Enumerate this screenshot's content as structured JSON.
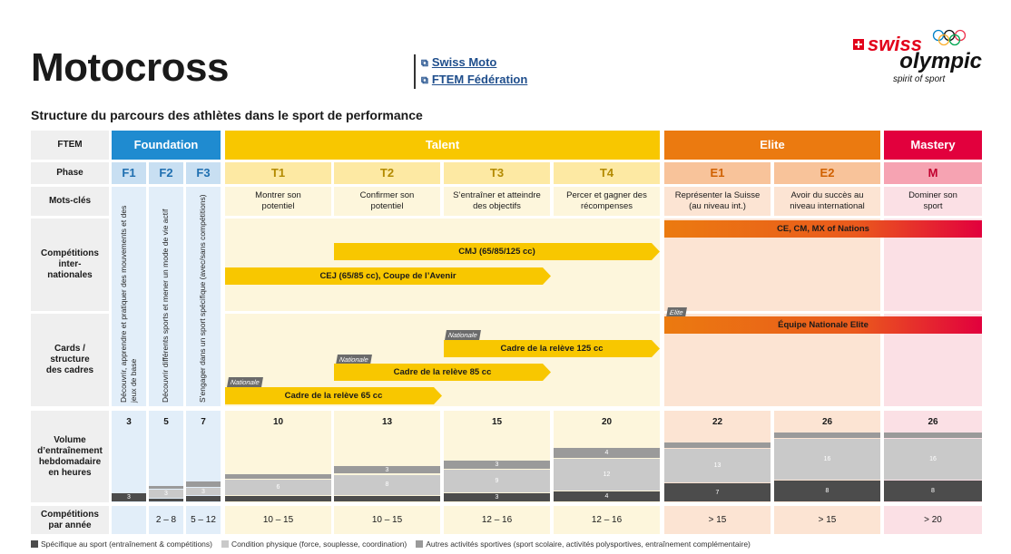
{
  "header": {
    "title": "Motocross",
    "links": [
      "Swiss Moto",
      "FTEM Fédération"
    ],
    "logo": {
      "swiss": "swiss",
      "olympic": "olympic",
      "spirit": "spirit of sport"
    },
    "subtitle": "Structure du parcours des athlètes dans le sport de performance"
  },
  "rows": {
    "ftem": "FTEM",
    "phase": "Phase",
    "keywords": "Mots-clés",
    "competitions": "Compétitions inter-nationales",
    "cards": "Cards / structure des cadres",
    "volume": "Volume d’entraînement hebdomadaire en heures",
    "per_year": "Compétitions par année"
  },
  "stages": {
    "foundation": "Foundation",
    "talent": "Talent",
    "elite": "Elite",
    "mastery": "Mastery"
  },
  "phases": [
    "F1",
    "F2",
    "F3",
    "T1",
    "T2",
    "T3",
    "T4",
    "E1",
    "E2",
    "M"
  ],
  "colors": {
    "foundation": "#1f8bd0",
    "talent": "#f8c700",
    "elite": "#eb7a10",
    "mastery": "#e2003d"
  },
  "foundation_text": [
    "Découvrir, apprendre et pratiquer des mouvements et des jeux de base",
    "Découvrir différents sports et mener un mode de vie actif",
    "S’engager dans un sport spécifique (avec/sans compétitions)"
  ],
  "keywords": [
    "Montrer son potentiel",
    "Confirmer son potentiel",
    "S’entraîner et atteindre des objectifs",
    "Percer et gagner des récompenses",
    "Représenter la Suisse (au niveau int.)",
    "Avoir du succès au niveau international",
    "Dominer son sport"
  ],
  "competitions": {
    "ce": "CE, CM, MX of Nations",
    "cmj": "CMJ (65/85/125 cc)",
    "cej": "CEJ (65/85 cc), Coupe de l’Avenir"
  },
  "cards": {
    "elite_tag": "Elite",
    "elite_bar": "Équipe Nationale Elite",
    "national_tag": "Nationale",
    "c125": "Cadre de la relève 125 cc",
    "c85": "Cadre de la relève 85 cc",
    "c65": "Cadre de la relève 65 cc"
  },
  "volume_totals": [
    "3",
    "5",
    "7",
    "10",
    "13",
    "15",
    "20",
    "22",
    "26",
    "26"
  ],
  "chart_data": {
    "type": "bar",
    "categories": [
      "F1",
      "F2",
      "F3",
      "T1",
      "T2",
      "T3",
      "T4",
      "E1",
      "E2",
      "M"
    ],
    "series": [
      {
        "name": "Spécifique au sport (entraînement & compétitions)",
        "values": [
          3,
          1,
          2,
          2,
          2,
          3,
          4,
          7,
          8,
          8
        ]
      },
      {
        "name": "Condition physique (force, souplesse, coordination)",
        "values": [
          0,
          3,
          3,
          6,
          8,
          9,
          12,
          13,
          16,
          16
        ]
      },
      {
        "name": "Autres activités sportives (sport scolaire, activités polysportives, entraînement complémentaire)",
        "values": [
          0,
          1,
          2,
          2,
          3,
          3,
          4,
          2,
          2,
          2
        ]
      }
    ],
    "ylim": [
      0,
      26
    ]
  },
  "per_year": [
    "",
    "2 – 8",
    "5 – 12",
    "10 – 15",
    "10 – 15",
    "12 – 16",
    "12 – 16",
    "> 15",
    "> 15",
    "> 20"
  ],
  "legend": [
    "Spécifique au sport (entraînement & compétitions)",
    "Condition physique (force, souplesse, coordination)",
    "Autres activités sportives (sport scolaire, activités polysportives, entraînement complémentaire)"
  ]
}
